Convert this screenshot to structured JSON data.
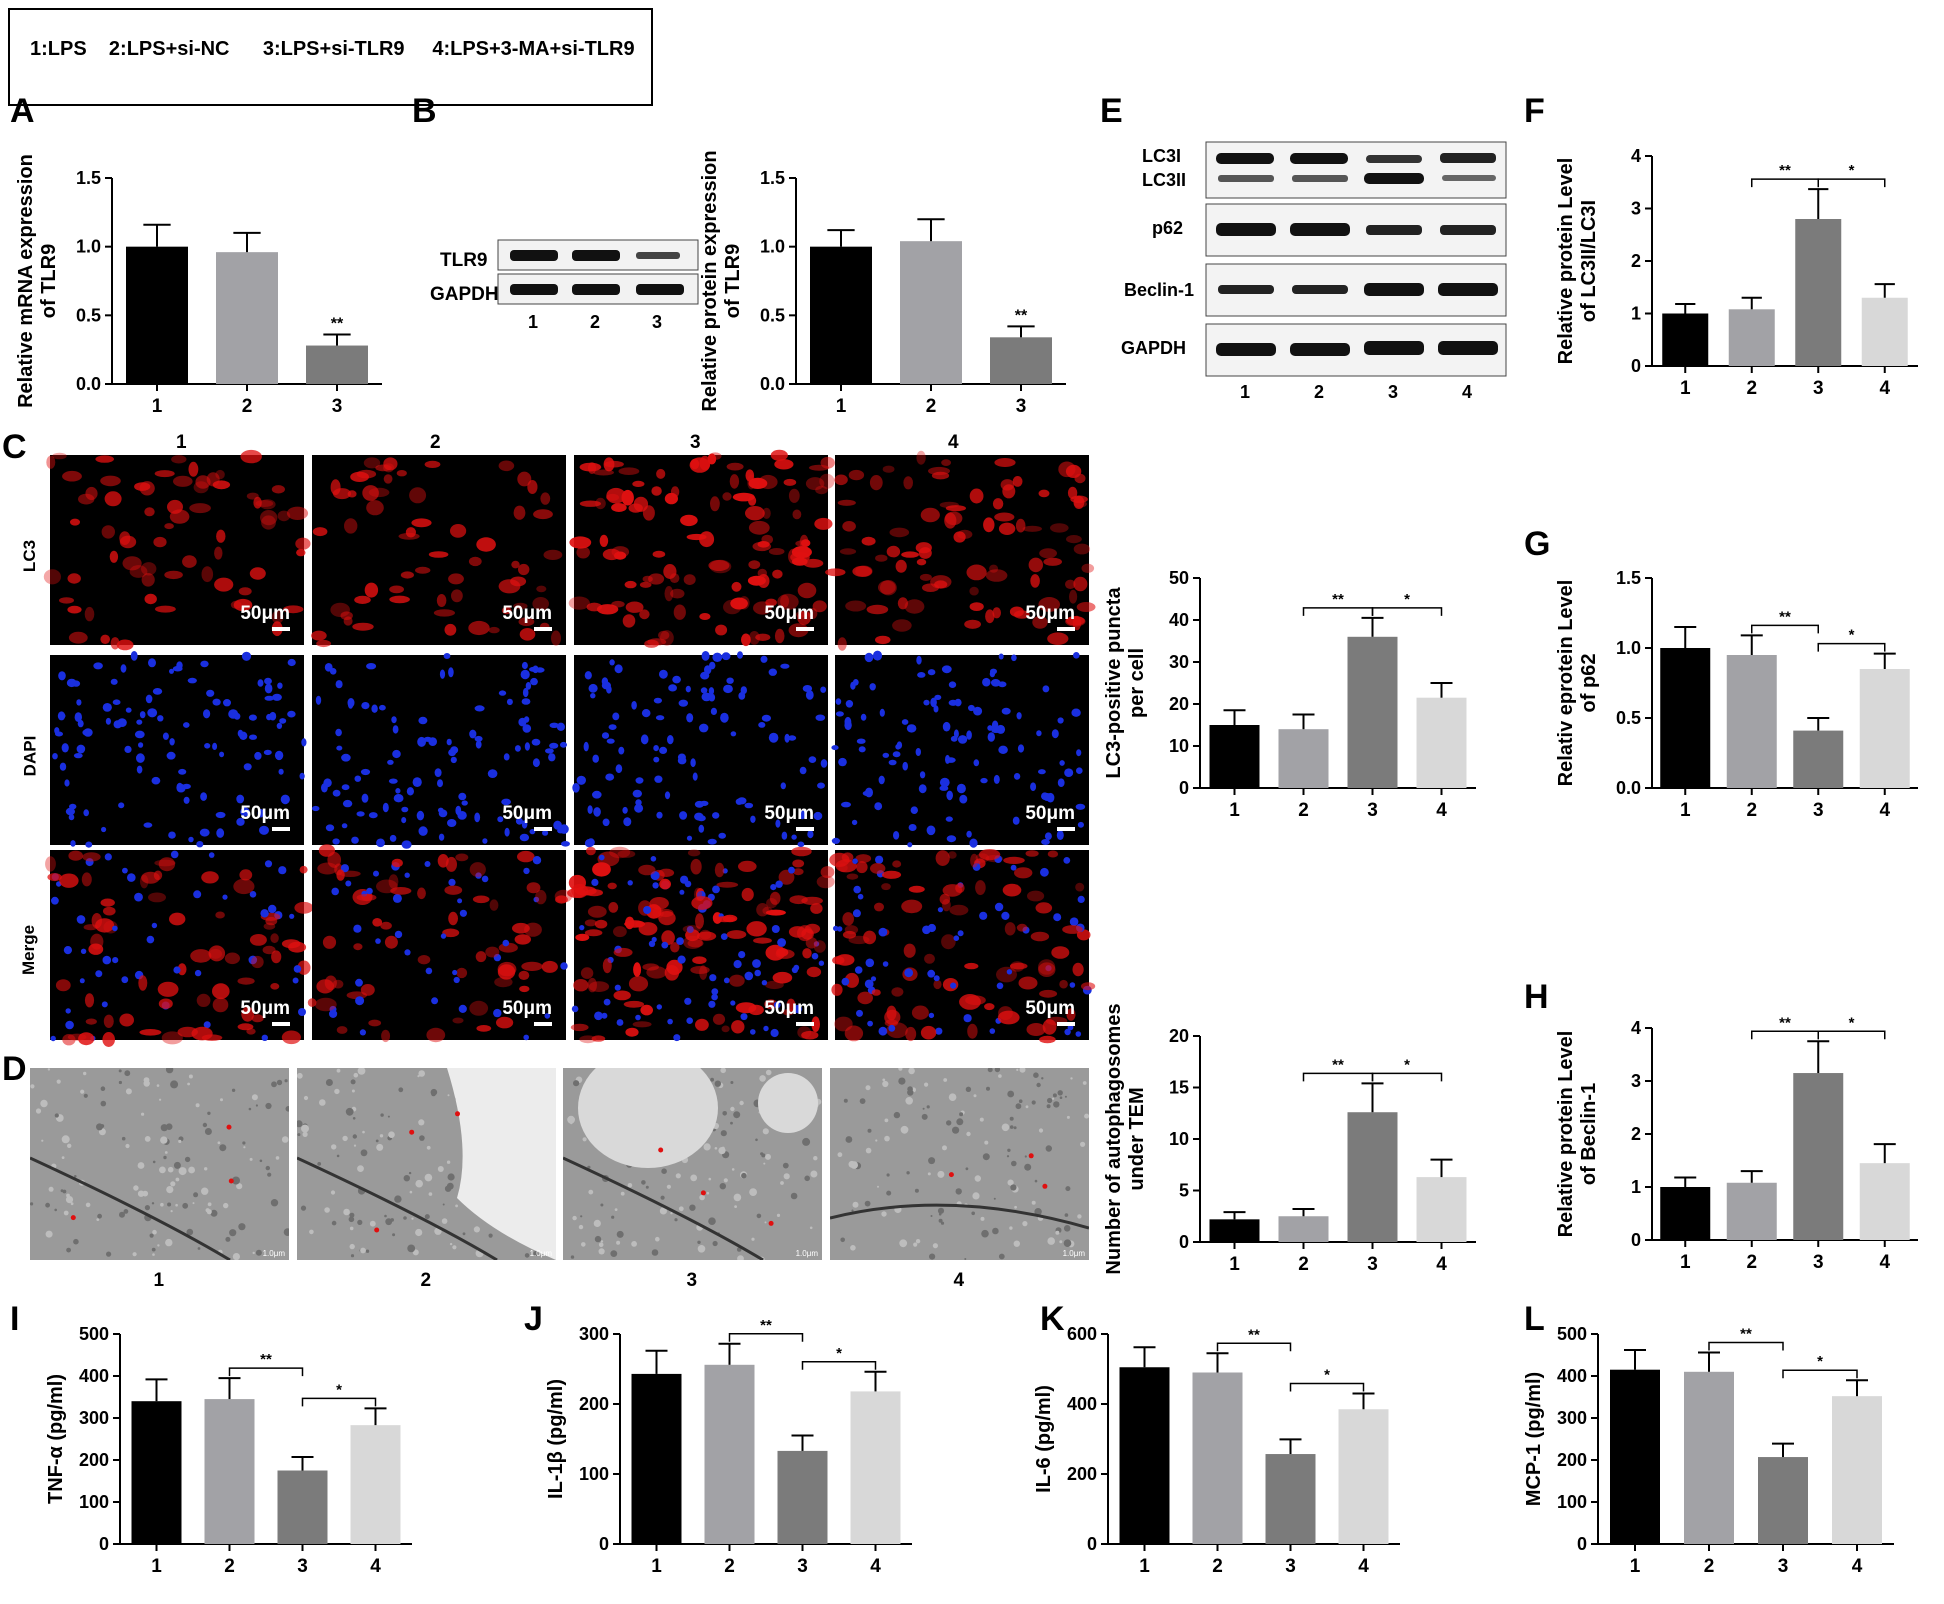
{
  "legend": "1:LPS    2:LPS+si-NC      3:LPS+si-TLR9     4:LPS+3-MA+si-TLR9",
  "panel_labels": [
    "A",
    "B",
    "C",
    "D",
    "E",
    "F",
    "G",
    "H",
    "I",
    "J",
    "K",
    "L"
  ],
  "blot_B": {
    "rows": [
      "TLR9",
      "GAPDH"
    ],
    "lanes": [
      "1",
      "2",
      "3"
    ]
  },
  "blot_E": {
    "rows": [
      "LC3I",
      "LC3II",
      "p62",
      "Beclin-1",
      "GAPDH"
    ],
    "lanes": [
      "1",
      "2",
      "3",
      "4"
    ]
  },
  "microscopy": {
    "columns": [
      "1",
      "2",
      "3",
      "4"
    ],
    "rows": [
      "LC3",
      "DAPI",
      "Merge"
    ],
    "scale_bar": "50μm"
  },
  "tem": {
    "columns": [
      "1",
      "2",
      "3",
      "4"
    ],
    "scale_bar": "1.0μm"
  },
  "colors": {
    "g1": "#000000",
    "g2": "#a2a2a6",
    "g3": "#7b7b7b",
    "g4": "#d8d8d8",
    "red_cells": "#e01010",
    "blue_nuclei": "#1a2fe0"
  },
  "chart_data": [
    {
      "id": "A",
      "type": "bar",
      "categories": [
        "1",
        "2",
        "3"
      ],
      "values": [
        1.0,
        0.96,
        0.28
      ],
      "errors": [
        0.16,
        0.14,
        0.08
      ],
      "ylabel": "Relative mRNA expression\nof TLR9",
      "ylim": [
        0,
        1.5
      ],
      "yticks": [
        "0.0",
        "0.5",
        "1.0",
        "1.5"
      ],
      "annotations": [
        "",
        "",
        "**"
      ]
    },
    {
      "id": "B",
      "type": "bar",
      "categories": [
        "1",
        "2",
        "3"
      ],
      "values": [
        1.0,
        1.04,
        0.34
      ],
      "errors": [
        0.12,
        0.16,
        0.08
      ],
      "ylabel": "Relative protein expression\nof TLR9",
      "ylim": [
        0,
        1.5
      ],
      "yticks": [
        "0.0",
        "0.5",
        "1.0",
        "1.5"
      ],
      "annotations": [
        "",
        "",
        "**"
      ]
    },
    {
      "id": "F",
      "type": "bar",
      "categories": [
        "1",
        "2",
        "3",
        "4"
      ],
      "values": [
        1.0,
        1.08,
        2.8,
        1.3
      ],
      "errors": [
        0.18,
        0.22,
        0.57,
        0.26
      ],
      "ylabel": "Relative protein Level\nof LC3II/LC3I",
      "ylim": [
        0,
        4
      ],
      "yticks": [
        "0",
        "1",
        "2",
        "3",
        "4"
      ],
      "brackets": [
        {
          "from": 2,
          "to": 3,
          "label": "**"
        },
        {
          "from": 3,
          "to": 4,
          "label": "*"
        }
      ]
    },
    {
      "id": "C-quant",
      "type": "bar",
      "categories": [
        "1",
        "2",
        "3",
        "4"
      ],
      "values": [
        15,
        14,
        36,
        21.5
      ],
      "errors": [
        3.5,
        3.5,
        4.5,
        3.5
      ],
      "ylabel": "LC3-positive puncta\nper cell",
      "ylim": [
        0,
        50
      ],
      "yticks": [
        "0",
        "10",
        "20",
        "30",
        "40",
        "50"
      ],
      "brackets": [
        {
          "from": 2,
          "to": 3,
          "label": "**"
        },
        {
          "from": 3,
          "to": 4,
          "label": "*"
        }
      ]
    },
    {
      "id": "G",
      "type": "bar",
      "categories": [
        "1",
        "2",
        "3",
        "4"
      ],
      "values": [
        1.0,
        0.95,
        0.41,
        0.85
      ],
      "errors": [
        0.15,
        0.14,
        0.09,
        0.11
      ],
      "ylabel": "Relativ eprotein Level\nof p62",
      "ylim": [
        0,
        1.5
      ],
      "yticks": [
        "0.0",
        "0.5",
        "1.0",
        "1.5"
      ],
      "brackets": [
        {
          "from": 2,
          "to": 3,
          "label": "**"
        },
        {
          "from": 3,
          "to": 4,
          "label": "*"
        }
      ]
    },
    {
      "id": "D-quant",
      "type": "bar",
      "categories": [
        "1",
        "2",
        "3",
        "4"
      ],
      "values": [
        2.2,
        2.5,
        12.6,
        6.3
      ],
      "errors": [
        0.7,
        0.7,
        2.8,
        1.7
      ],
      "ylabel": "Number of autophagosomes\nunder TEM",
      "ylim": [
        0,
        20
      ],
      "yticks": [
        "0",
        "5",
        "10",
        "15",
        "20"
      ],
      "brackets": [
        {
          "from": 2,
          "to": 3,
          "label": "**"
        },
        {
          "from": 3,
          "to": 4,
          "label": "*"
        }
      ]
    },
    {
      "id": "H",
      "type": "bar",
      "categories": [
        "1",
        "2",
        "3",
        "4"
      ],
      "values": [
        1.0,
        1.08,
        3.15,
        1.45
      ],
      "errors": [
        0.18,
        0.22,
        0.6,
        0.36
      ],
      "ylabel": "Relative protein Level\nof Beclin-1",
      "ylim": [
        0,
        4
      ],
      "yticks": [
        "0",
        "1",
        "2",
        "3",
        "4"
      ],
      "brackets": [
        {
          "from": 2,
          "to": 3,
          "label": "**"
        },
        {
          "from": 3,
          "to": 4,
          "label": "*"
        }
      ]
    },
    {
      "id": "I",
      "type": "bar",
      "categories": [
        "1",
        "2",
        "3",
        "4"
      ],
      "values": [
        340,
        345,
        175,
        283
      ],
      "errors": [
        52,
        50,
        32,
        40
      ],
      "ylabel": "TNF-α (pg/ml)",
      "ylim": [
        0,
        500
      ],
      "yticks": [
        "0",
        "100",
        "200",
        "300",
        "400",
        "500"
      ],
      "brackets": [
        {
          "from": 2,
          "to": 3,
          "label": "**"
        },
        {
          "from": 3,
          "to": 4,
          "label": "*"
        }
      ]
    },
    {
      "id": "J",
      "type": "bar",
      "categories": [
        "1",
        "2",
        "3",
        "4"
      ],
      "values": [
        243,
        256,
        133,
        218
      ],
      "errors": [
        33,
        30,
        22,
        28
      ],
      "ylabel": "IL-1β (pg/ml)",
      "ylim": [
        0,
        300
      ],
      "yticks": [
        "0",
        "100",
        "200",
        "300"
      ],
      "brackets": [
        {
          "from": 2,
          "to": 3,
          "label": "**"
        },
        {
          "from": 3,
          "to": 4,
          "label": "*"
        }
      ]
    },
    {
      "id": "K",
      "type": "bar",
      "categories": [
        "1",
        "2",
        "3",
        "4"
      ],
      "values": [
        505,
        490,
        257,
        385
      ],
      "errors": [
        57,
        55,
        42,
        45
      ],
      "ylabel": "IL-6 (pg/ml)",
      "ylim": [
        0,
        600
      ],
      "yticks": [
        "0",
        "200",
        "400",
        "600"
      ],
      "brackets": [
        {
          "from": 2,
          "to": 3,
          "label": "**"
        },
        {
          "from": 3,
          "to": 4,
          "label": "*"
        }
      ]
    },
    {
      "id": "L",
      "type": "bar",
      "categories": [
        "1",
        "2",
        "3",
        "4"
      ],
      "values": [
        415,
        410,
        207,
        352
      ],
      "errors": [
        47,
        46,
        32,
        38
      ],
      "ylabel": "MCP-1 (pg/ml)",
      "ylim": [
        0,
        500
      ],
      "yticks": [
        "0",
        "100",
        "200",
        "300",
        "400",
        "500"
      ],
      "brackets": [
        {
          "from": 2,
          "to": 3,
          "label": "**"
        },
        {
          "from": 3,
          "to": 4,
          "label": "*"
        }
      ]
    }
  ]
}
